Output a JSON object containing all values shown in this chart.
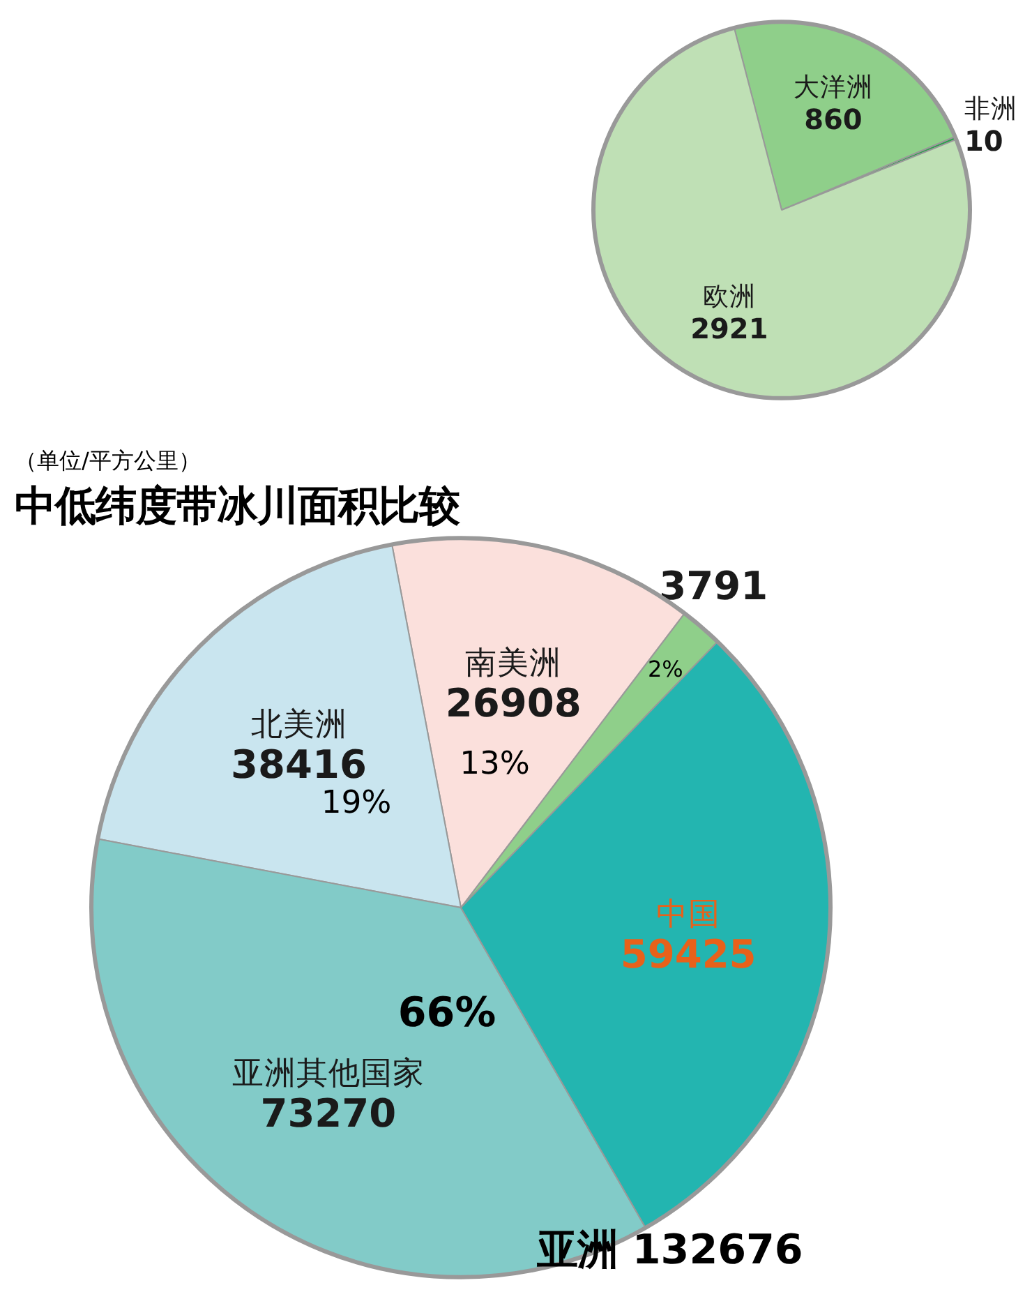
{
  "chart_data": [
    {
      "type": "pie",
      "title": "中低纬度带冰川面积比较",
      "subtitle": "（单位/平方公里）",
      "categories": [
        null,
        "南美洲",
        "北美洲",
        "亚洲其他国家",
        "中国"
      ],
      "values": [
        3791,
        26908,
        38416,
        73270,
        59425
      ],
      "colors": [
        "#8fcf8a",
        "#fbe0dc",
        "#c9e5ef",
        "#82cbc8",
        "#23b5b0"
      ],
      "data_labels": true,
      "annotations": [
        "2%",
        "13%",
        "19%",
        "66%",
        "亚洲 132676"
      ]
    },
    {
      "type": "pie",
      "categories": [
        "非洲",
        "大洋洲",
        "欧洲"
      ],
      "values": [
        10,
        860,
        2921
      ],
      "colors": [
        "#2aa14a",
        "#8fcf8a",
        "#bfe0b5"
      ],
      "data_labels": true
    }
  ]
}
